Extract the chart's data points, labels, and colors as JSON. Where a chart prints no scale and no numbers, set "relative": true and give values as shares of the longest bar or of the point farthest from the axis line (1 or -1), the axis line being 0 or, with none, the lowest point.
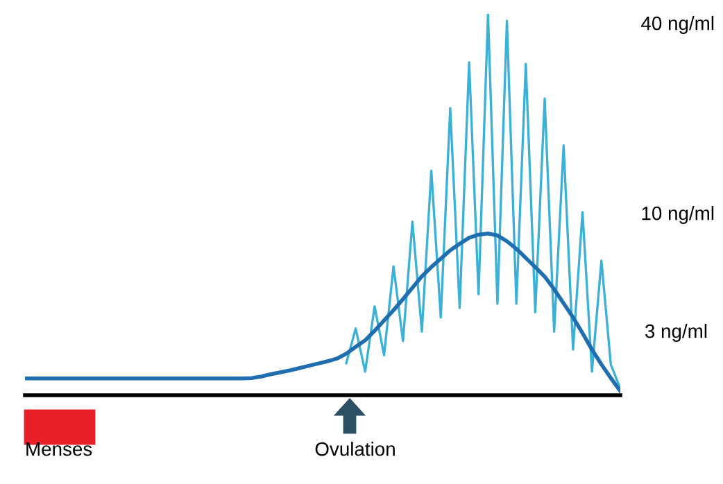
{
  "chart_data": {
    "type": "line",
    "relative": true,
    "marker": "none",
    "line_style": "solid",
    "categories": [
      null,
      null,
      null,
      null,
      null,
      null,
      null,
      null,
      null,
      null,
      null,
      null,
      null,
      null,
      null,
      null,
      null,
      null,
      null,
      null,
      null,
      null,
      null,
      null,
      null,
      null,
      null,
      null,
      null,
      null,
      null,
      null,
      null,
      null,
      null,
      null,
      null,
      null,
      null,
      null,
      null,
      null,
      null,
      null,
      null,
      null,
      null,
      null,
      null,
      null,
      null,
      null,
      null,
      null,
      null,
      null,
      null,
      null,
      null,
      null,
      null,
      null,
      null,
      null
    ],
    "series": [
      {
        "color": "#3bb0d9",
        "values": [
          null,
          null,
          null,
          null,
          null,
          null,
          null,
          null,
          null,
          null,
          null,
          null,
          null,
          null,
          null,
          null,
          null,
          null,
          null,
          null,
          null,
          null,
          null,
          null,
          null,
          null,
          null,
          null,
          null,
          null,
          null,
          null,
          null,
          null,
          0.084,
          0.175,
          0.062,
          0.233,
          0.105,
          0.338,
          0.142,
          0.455,
          0.167,
          0.589,
          0.204,
          0.753,
          0.229,
          0.873,
          0.265,
          1.0,
          0.24,
          0.982,
          0.24,
          0.869,
          0.218,
          0.778,
          0.167,
          0.655,
          0.12,
          0.48,
          0.062,
          0.353,
          0.08,
          0.018
        ]
      },
      {
        "color": "#1f6fb0",
        "values": [
          0.044,
          0.044,
          0.044,
          0.044,
          0.044,
          0.044,
          0.044,
          0.044,
          0.044,
          0.044,
          0.044,
          0.044,
          0.044,
          0.044,
          0.044,
          0.044,
          0.044,
          0.044,
          0.044,
          0.044,
          0.044,
          0.044,
          0.044,
          0.044,
          0.045,
          0.049,
          0.055,
          0.06,
          0.065,
          0.071,
          0.077,
          0.083,
          0.089,
          0.096,
          0.109,
          0.127,
          0.144,
          0.169,
          0.196,
          0.223,
          0.252,
          0.282,
          0.312,
          0.336,
          0.358,
          0.38,
          0.397,
          0.413,
          0.421,
          0.424,
          0.419,
          0.404,
          0.384,
          0.36,
          0.336,
          0.311,
          0.278,
          0.241,
          0.204,
          0.163,
          0.12,
          0.081,
          0.045,
          0.011
        ]
      }
    ],
    "annotations": [
      "40 ng/ml",
      "10 ng/ml",
      "3 ng/ml",
      "Menses",
      "Ovulation"
    ]
  }
}
